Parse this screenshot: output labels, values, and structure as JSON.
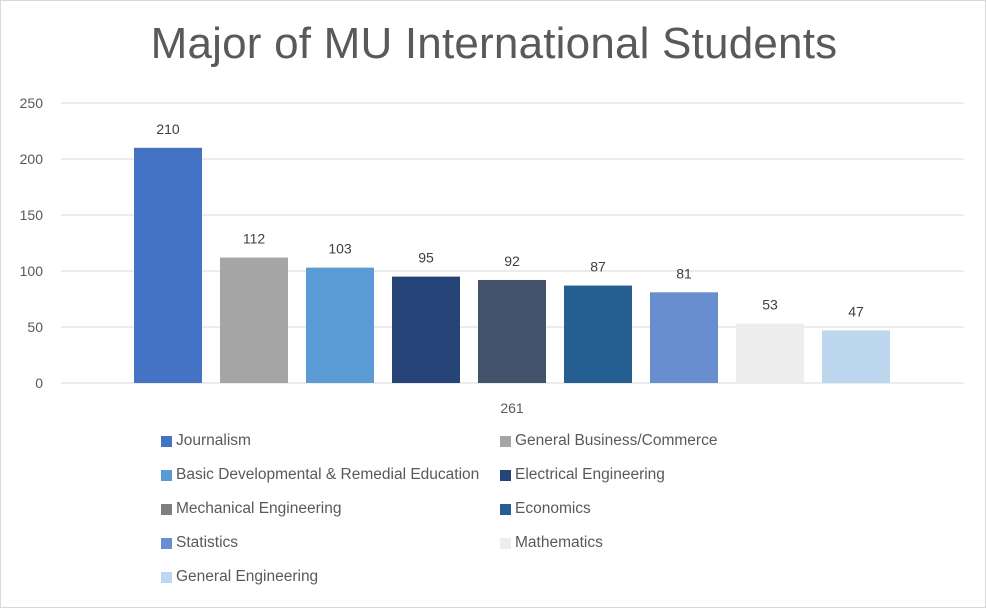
{
  "chart_data": {
    "type": "bar",
    "title": "Major of MU International Students",
    "categories": [
      "261"
    ],
    "x_axis_label": "261",
    "ylim": [
      0,
      250
    ],
    "yticks": [
      0,
      50,
      100,
      150,
      200,
      250
    ],
    "grid": true,
    "legend_position": "bottom",
    "series": [
      {
        "name": "Journalism",
        "value": 210,
        "color": "#4472c4"
      },
      {
        "name": "General Business/Commerce",
        "value": 112,
        "color": "#a5a5a5"
      },
      {
        "name": "Basic Developmental & Remedial Education",
        "value": 103,
        "color": "#5b9bd5"
      },
      {
        "name": "Electrical Engineering",
        "value": 95,
        "color": "#264478"
      },
      {
        "name": "Mechanical Engineering",
        "value": 92,
        "color": "#43536b",
        "legend_color": "#7f7f7f"
      },
      {
        "name": "Economics",
        "value": 87,
        "color": "#255e91"
      },
      {
        "name": "Statistics",
        "value": 81,
        "color": "#698ed0"
      },
      {
        "name": "Mathematics",
        "value": 53,
        "color": "#ededed"
      },
      {
        "name": "General Engineering",
        "value": 47,
        "color": "#bdd7ee"
      }
    ]
  }
}
